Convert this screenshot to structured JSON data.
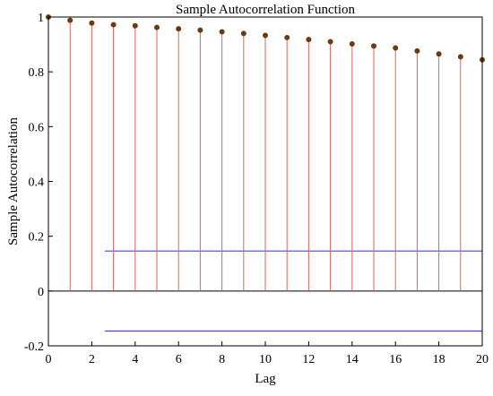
{
  "chart_data": {
    "type": "stem",
    "title": "Sample Autocorrelation Function",
    "xlabel": "Lag",
    "ylabel": "Sample Autocorrelation",
    "xlim": [
      0,
      20
    ],
    "ylim": [
      -0.2,
      1
    ],
    "xticks": [
      "0",
      "2",
      "4",
      "6",
      "8",
      "10",
      "12",
      "14",
      "16",
      "18",
      "20"
    ],
    "yticks": [
      "-0.2",
      "0",
      "0.2",
      "0.4",
      "0.6",
      "0.8",
      "1"
    ],
    "grid": false,
    "lags": [
      0,
      1,
      2,
      3,
      4,
      5,
      6,
      7,
      8,
      9,
      10,
      11,
      12,
      13,
      14,
      15,
      16,
      17,
      18,
      19,
      20
    ],
    "values": [
      1.0,
      0.988,
      0.978,
      0.972,
      0.968,
      0.962,
      0.957,
      0.952,
      0.946,
      0.94,
      0.933,
      0.925,
      0.918,
      0.91,
      0.902,
      0.894,
      0.887,
      0.876,
      0.865,
      0.855,
      0.844
    ],
    "confidence_bounds": {
      "upper": 0.146,
      "lower": -0.146,
      "lag_start": 2.6
    },
    "colors": {
      "stem": "#e0635a",
      "marker": "#6b3a10",
      "bounds": "#4b44e6",
      "zero_line": "#000000",
      "axes": "#000000"
    }
  }
}
